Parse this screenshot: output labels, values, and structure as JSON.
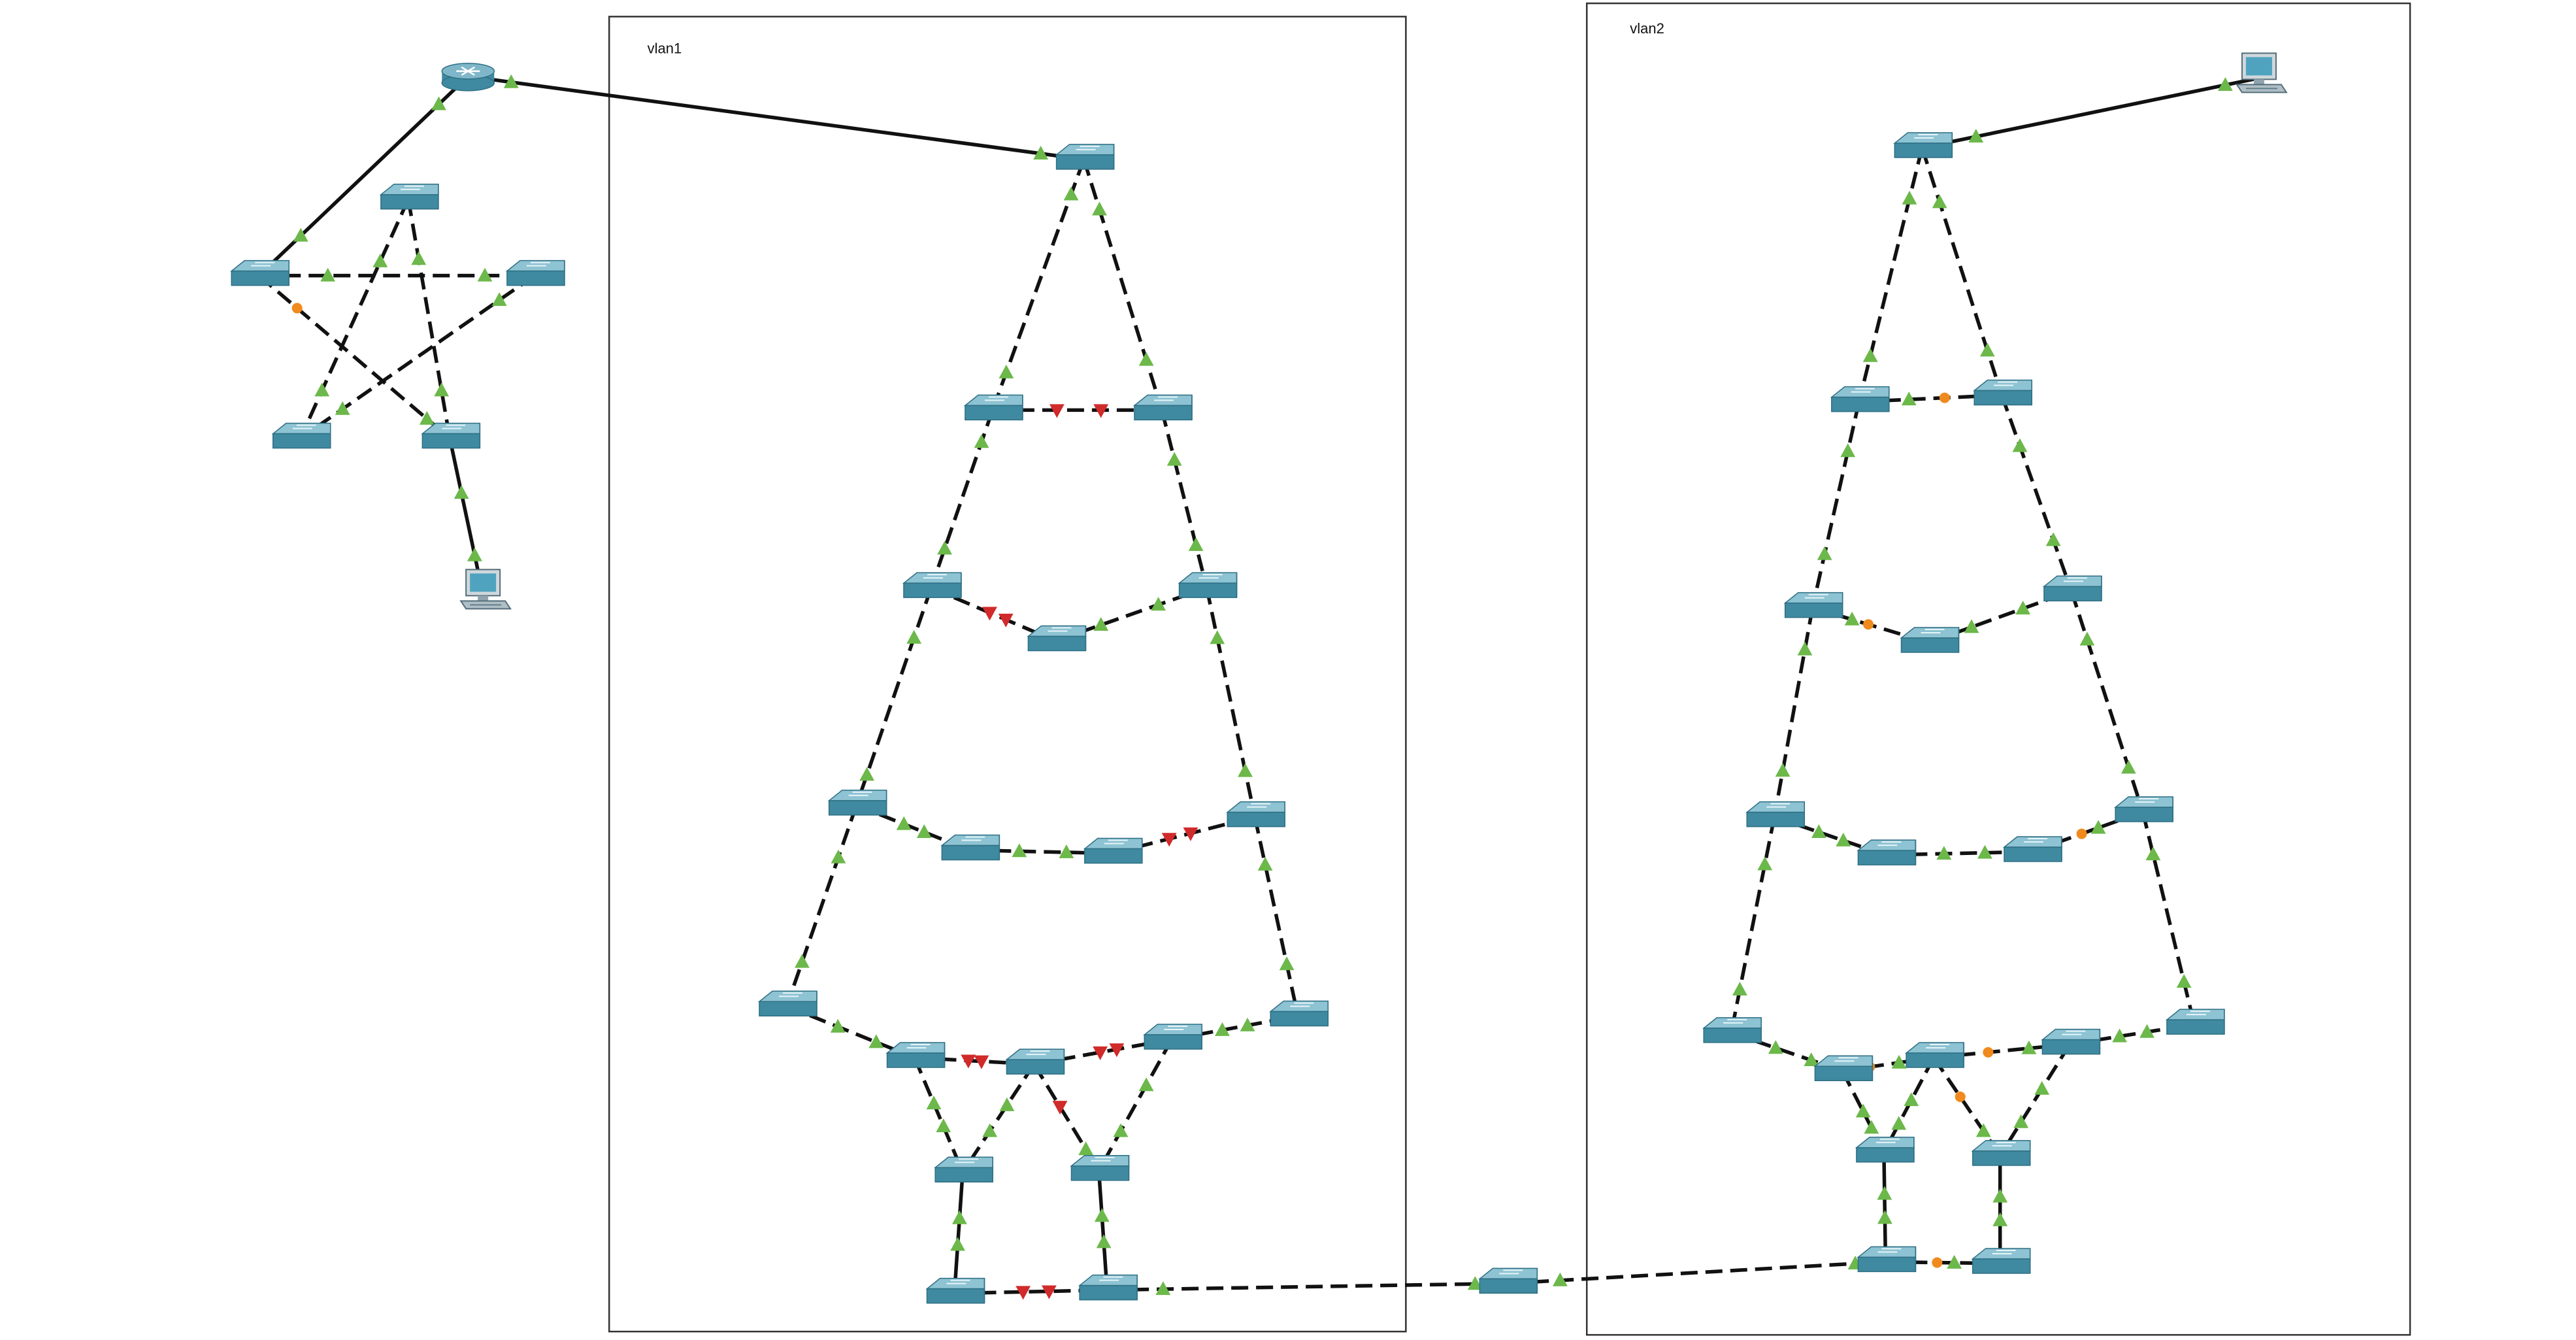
{
  "zones": [
    {
      "id": "vlan1",
      "label": "vlan1"
    },
    {
      "id": "vlan2",
      "label": "vlan2"
    }
  ],
  "legend_colors": {
    "link_up": "#6cb84a",
    "link_down": "#d12a2a",
    "link_blocking": "#f08a1c",
    "switch_top": "#8dc3d3",
    "switch_side": "#3f8aa1",
    "router": "#7fb6c9",
    "cable": "#111111"
  },
  "device_icons": {
    "switch": "switch-icon",
    "router": "router-icon",
    "pc": "pc-icon"
  }
}
